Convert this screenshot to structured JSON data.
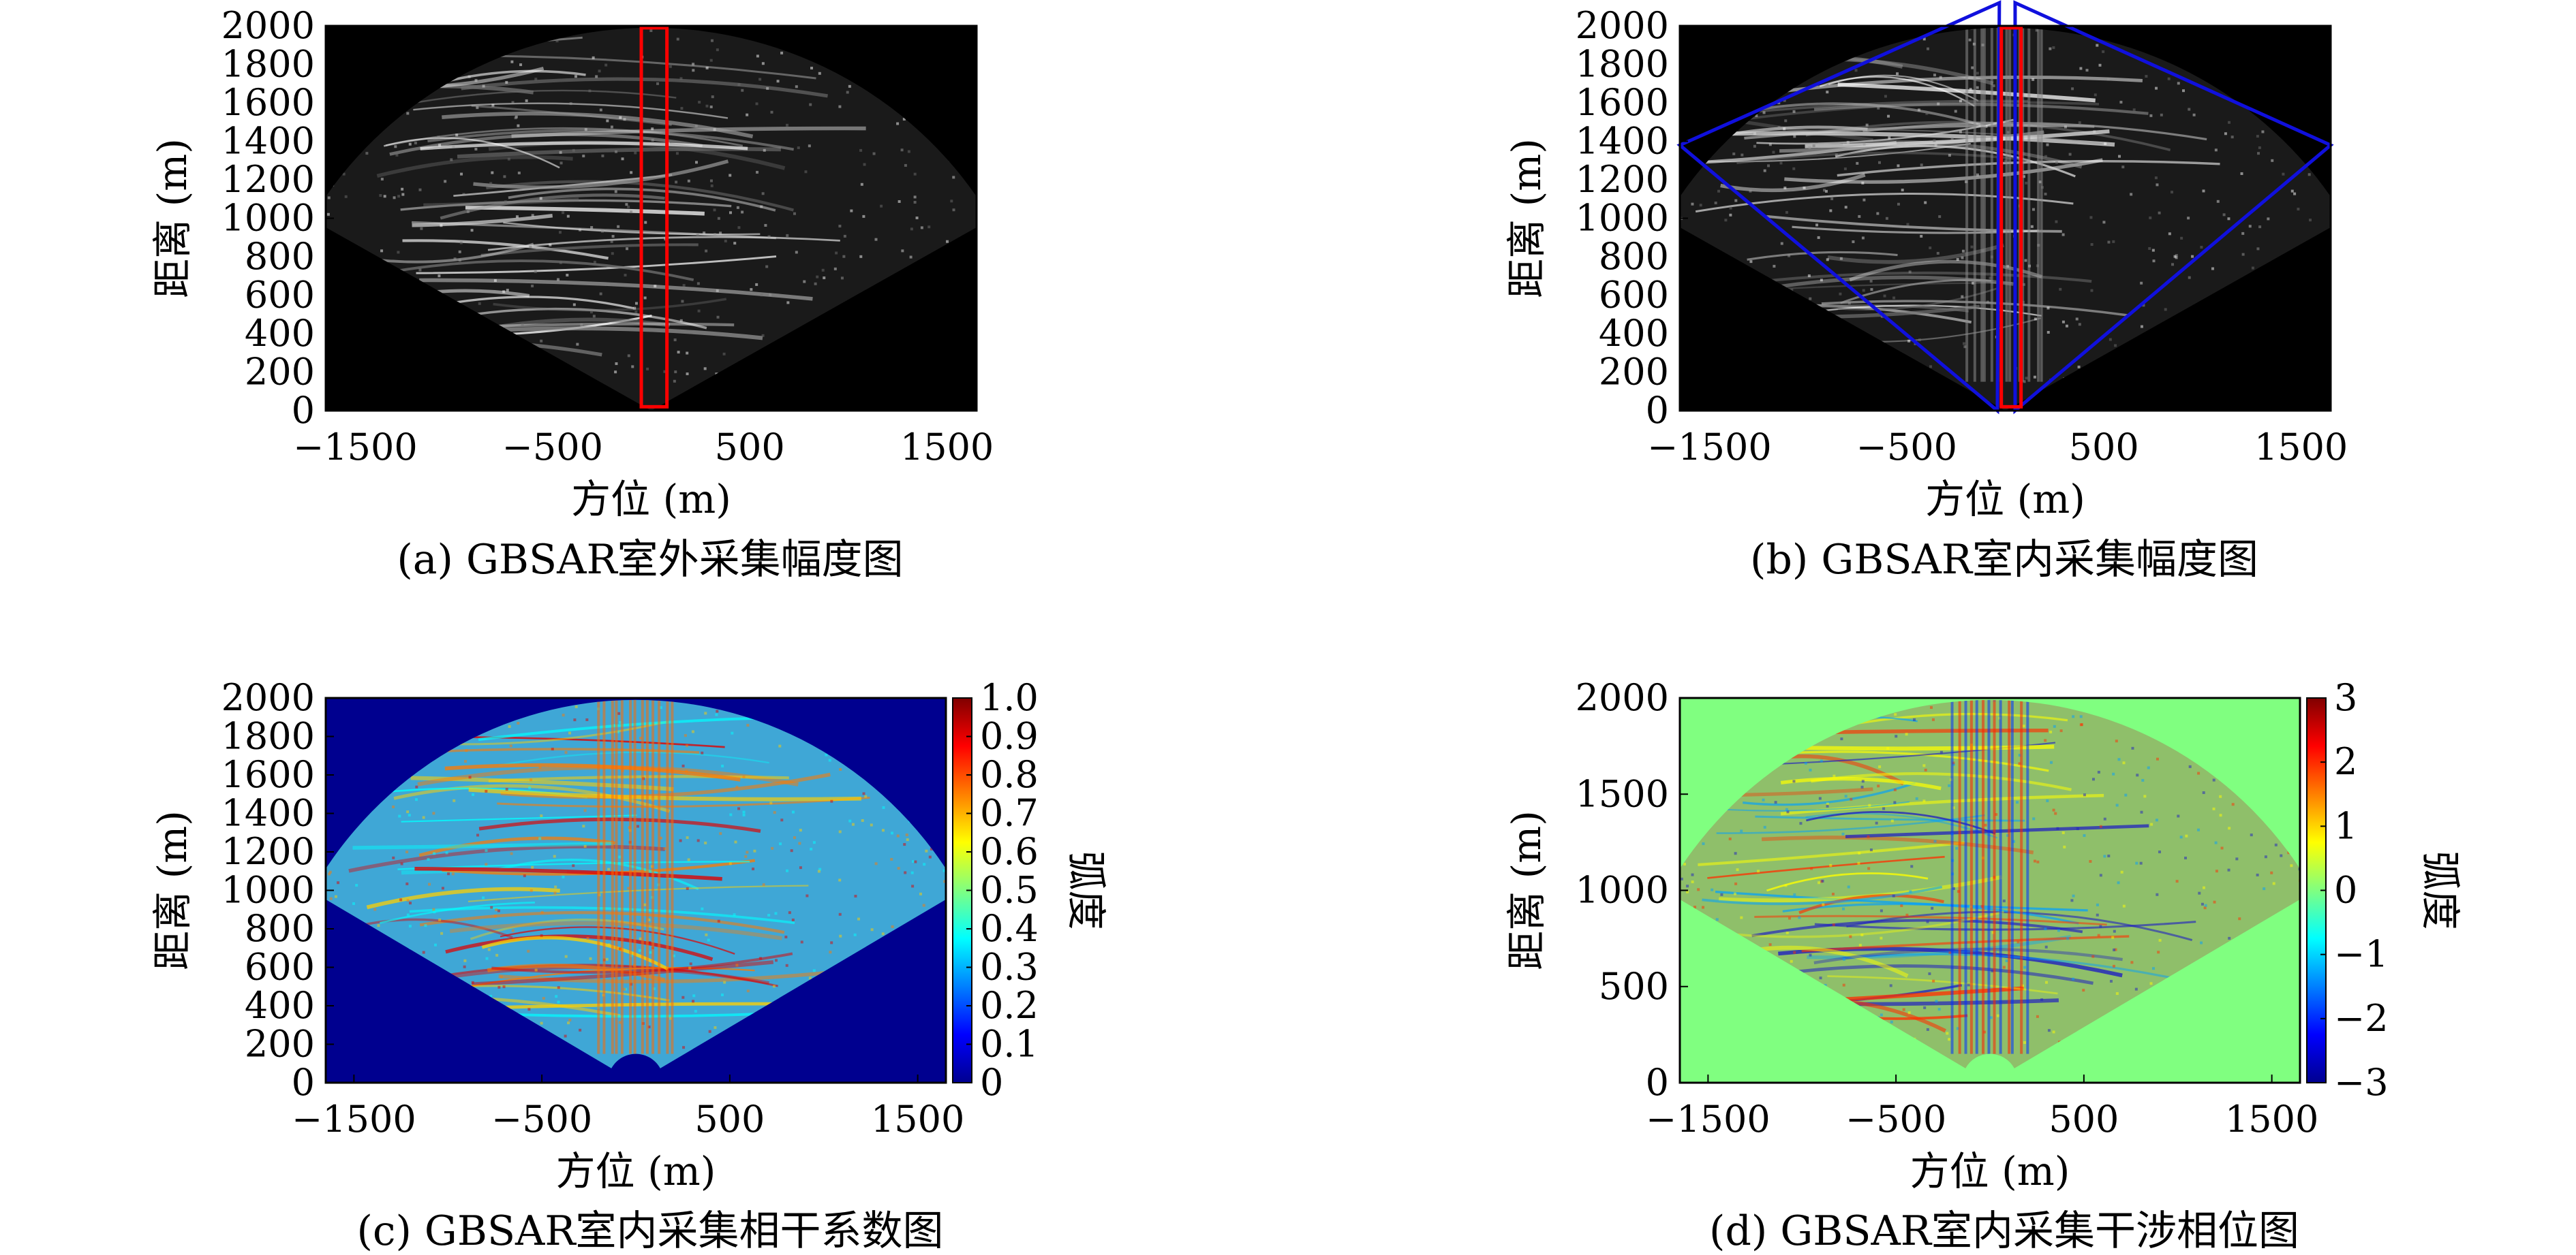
{
  "figure": {
    "panels": [
      {
        "id": "a",
        "caption": "(a) GBSAR室外采集幅度图"
      },
      {
        "id": "b",
        "caption": "(b) GBSAR室内采集幅度图"
      },
      {
        "id": "c",
        "caption": "(c) GBSAR室内采集相干系数图"
      },
      {
        "id": "d",
        "caption": "(d) GBSAR室内采集干涉相位图"
      }
    ]
  },
  "chart_data": [
    {
      "panel": "a",
      "type": "heatmap",
      "caption": "(a) GBSAR室外采集幅度图",
      "xlabel": "方位 (m)",
      "ylabel": "距离 (m)",
      "xlim": [
        -1650,
        1650
      ],
      "ylim": [
        0,
        2000
      ],
      "xticks": [
        "-1500",
        "-500",
        "500",
        "1500"
      ],
      "yticks": [
        "0",
        "200",
        "400",
        "600",
        "800",
        "1000",
        "1200",
        "1400",
        "1600",
        "1800",
        "2000"
      ],
      "colormap": "gray",
      "background": "#000000",
      "annotations": [
        {
          "shape": "rectangle",
          "color": "#ff0000",
          "x_range": [
            -50,
            80
          ],
          "y_range": [
            20,
            1990
          ]
        }
      ]
    },
    {
      "panel": "b",
      "type": "heatmap",
      "caption": "(b) GBSAR室内采集幅度图",
      "xlabel": "方位 (m)",
      "ylabel": "距离 (m)",
      "xlim": [
        -1650,
        1650
      ],
      "ylim": [
        0,
        2000
      ],
      "xticks": [
        "-1500",
        "-500",
        "500",
        "1500"
      ],
      "yticks": [
        "0",
        "200",
        "400",
        "600",
        "800",
        "1000",
        "1200",
        "1400",
        "1600",
        "1800",
        "2000"
      ],
      "colormap": "gray",
      "background": "#000000",
      "annotations": [
        {
          "shape": "polygon",
          "color": "#1010dd",
          "points_data": [
            [
              -40,
              0
            ],
            [
              -1650,
              1380
            ],
            [
              -30,
              2120
            ]
          ]
        },
        {
          "shape": "polygon",
          "color": "#1010dd",
          "points_data": [
            [
              50,
              0
            ],
            [
              1650,
              1380
            ],
            [
              50,
              2120
            ]
          ]
        },
        {
          "shape": "rectangle",
          "color": "#ff0000",
          "x_range": [
            -20,
            80
          ],
          "y_range": [
            20,
            1990
          ]
        }
      ]
    },
    {
      "panel": "c",
      "type": "heatmap",
      "caption": "(c) GBSAR室内采集相干系数图",
      "xlabel": "方位 (m)",
      "ylabel": "距离 (m)",
      "xlim": [
        -1650,
        1650
      ],
      "ylim": [
        0,
        2000
      ],
      "xticks": [
        "-1500",
        "-500",
        "500",
        "1500"
      ],
      "yticks": [
        "0",
        "200",
        "400",
        "600",
        "800",
        "1000",
        "1200",
        "1400",
        "1600",
        "1800",
        "2000"
      ],
      "colormap": "jet",
      "background": "#00008f",
      "colorbar": {
        "label": "弧度",
        "range": [
          0,
          1
        ],
        "ticks": [
          "0",
          "0.1",
          "0.2",
          "0.3",
          "0.4",
          "0.5",
          "0.6",
          "0.7",
          "0.8",
          "0.9",
          "1.0"
        ]
      }
    },
    {
      "panel": "d",
      "type": "heatmap",
      "caption": "(d) GBSAR室内采集干涉相位图",
      "xlabel": "方位 (m)",
      "ylabel": "距离 (m)",
      "xlim": [
        -1650,
        1650
      ],
      "ylim": [
        0,
        2000
      ],
      "xticks": [
        "-1500",
        "-500",
        "500",
        "1500"
      ],
      "yticks": [
        "0",
        "500",
        "1000",
        "1500",
        "2000"
      ],
      "colormap": "jet",
      "background": "#80ff80",
      "colorbar": {
        "label": "弧度",
        "range": [
          -3,
          3
        ],
        "ticks": [
          "−3",
          "−2",
          "−1",
          "0",
          "1",
          "2",
          "3"
        ]
      }
    }
  ]
}
